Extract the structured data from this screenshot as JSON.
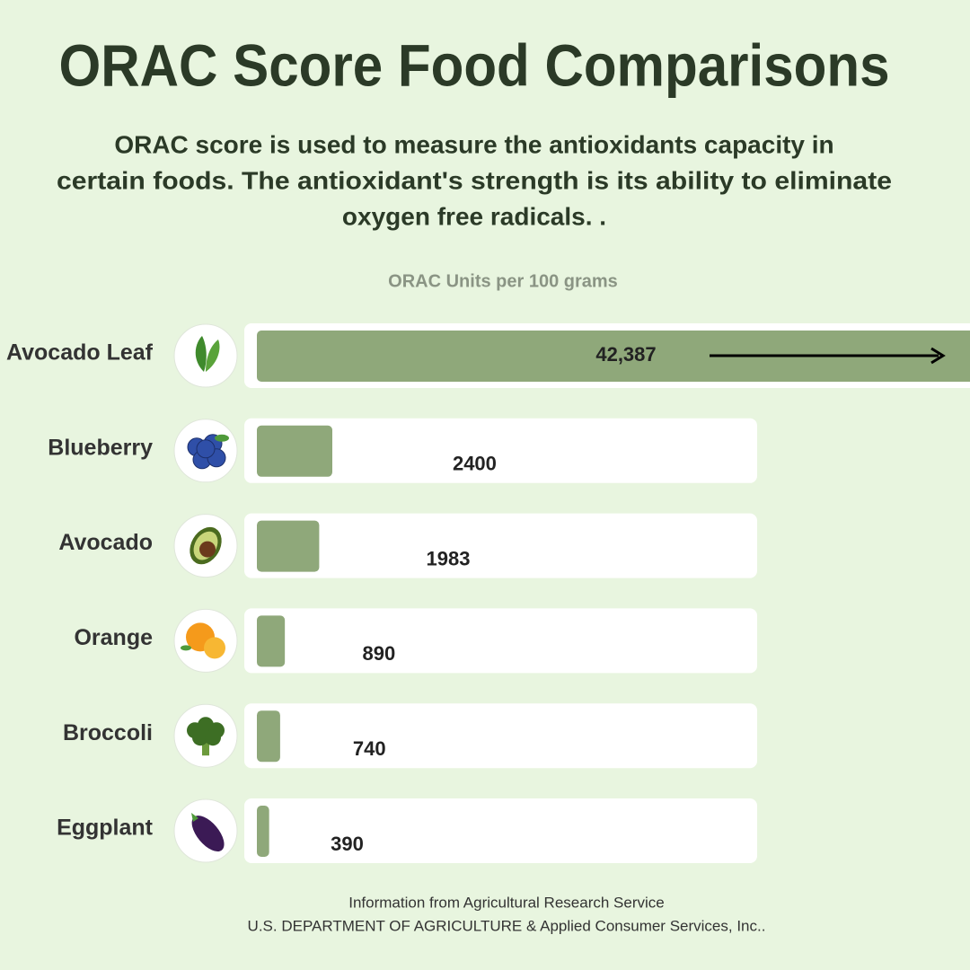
{
  "chart_data": {
    "type": "bar",
    "orientation": "horizontal",
    "title": "ORAC Score Food Comparisons",
    "subtitle": [
      "ORAC score is used to measure the antioxidants capacity in",
      "certain foods. The antioxidant's strength is its ability to eliminate",
      "oxygen free radicals. ."
    ],
    "axis_label": "ORAC Units per 100 grams",
    "categories": [
      "Avocado Leaf",
      "Blueberry",
      "Avocado",
      "Orange",
      "Broccoli",
      "Eggplant"
    ],
    "values": [
      42387,
      2400,
      1983,
      890,
      740,
      390
    ],
    "value_labels": [
      "42,387",
      "2400",
      "1983",
      "890",
      "740",
      "390"
    ],
    "color": "#8fa87a",
    "source": [
      "Information from Agricultural Research Service",
      "U.S. DEPARTMENT OF AGRICULTURE & Applied Consumer Services, Inc.."
    ]
  }
}
